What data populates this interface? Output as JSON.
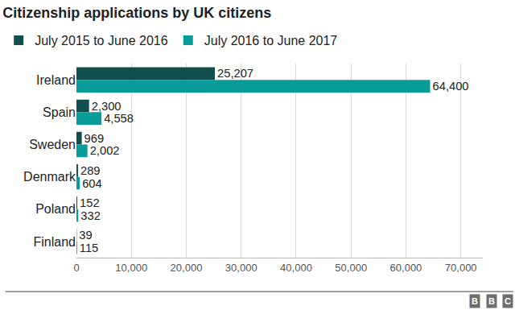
{
  "chart_data": {
    "type": "bar",
    "title": "Citizenship applications by UK citizens",
    "orientation": "horizontal",
    "categories": [
      "Ireland",
      "Spain",
      "Sweden",
      "Denmark",
      "Poland",
      "Finland"
    ],
    "series": [
      {
        "name": "July 2015 to June 2016",
        "color": "#114f4f",
        "values": [
          25207,
          2300,
          969,
          289,
          152,
          39
        ],
        "value_labels": [
          "25,207",
          "2,300",
          "969",
          "289",
          "152",
          "39"
        ]
      },
      {
        "name": "July 2016 to June 2017",
        "color": "#099b97",
        "values": [
          64400,
          4558,
          2002,
          604,
          332,
          115
        ],
        "value_labels": [
          "64,400",
          "4,558",
          "2,002",
          "604",
          "332",
          "115"
        ]
      }
    ],
    "xlim": [
      0,
      74000
    ],
    "xticks": [
      0,
      {
        "value": 10000,
        "label": "10,000"
      },
      {
        "value": 20000,
        "label": "20,000"
      },
      {
        "value": 30000,
        "label": "30,000"
      },
      {
        "value": 40000,
        "label": "40,000"
      },
      {
        "value": 50000,
        "label": "50,000"
      },
      {
        "value": 60000,
        "label": "60,000"
      },
      {
        "value": 70000,
        "label": "70,000"
      }
    ],
    "grid": true,
    "legend": "top-left",
    "data_labels": true,
    "annotations": [
      "BBC"
    ]
  }
}
